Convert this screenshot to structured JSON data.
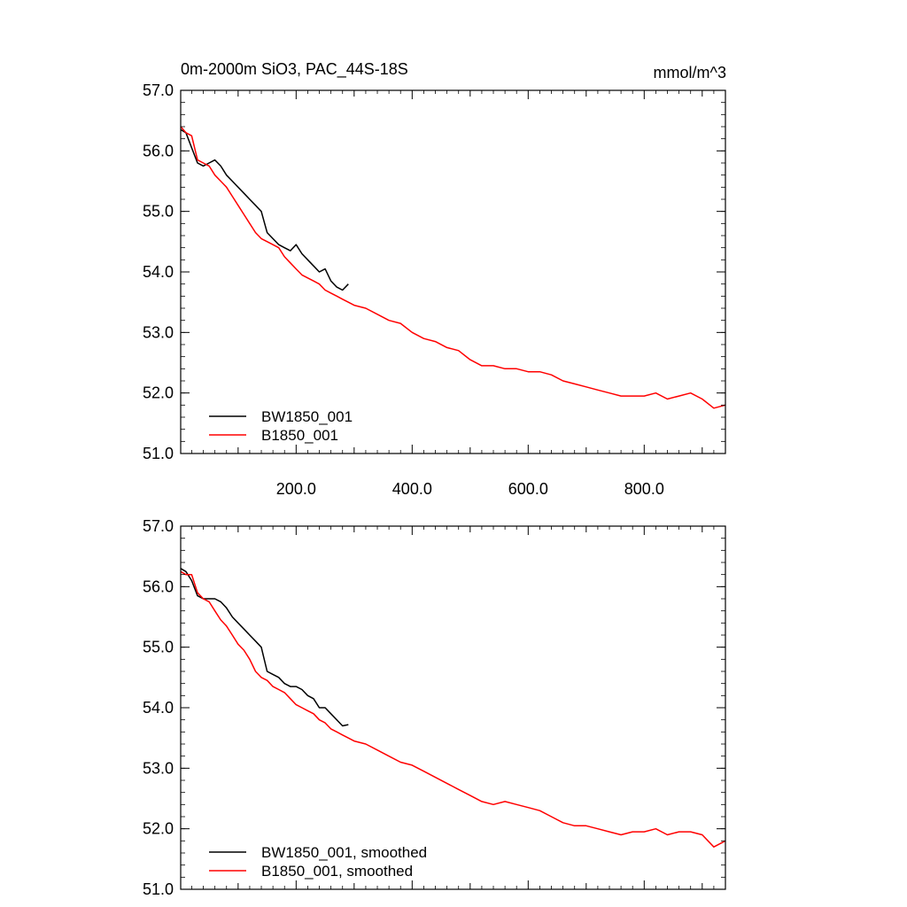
{
  "chart_data": [
    {
      "type": "line",
      "title": "0m-2000m SiO3, PAC_44S-18S",
      "units": "mmol/m^3",
      "xlim": [
        1,
        940
      ],
      "ylim": [
        51.0,
        57.0
      ],
      "x_ticks": [
        200,
        400,
        600,
        800
      ],
      "x_tick_labels": [
        "200.0",
        "400.0",
        "600.0",
        "800.0"
      ],
      "y_ticks": [
        51,
        52,
        53,
        54,
        55,
        56,
        57
      ],
      "y_tick_labels": [
        "51.0",
        "52.0",
        "53.0",
        "54.0",
        "55.0",
        "56.0",
        "57.0"
      ],
      "grid": false,
      "legend_position": "bottom-left",
      "series": [
        {
          "name": "BW1850_001",
          "color": "#000000",
          "x": [
            1,
            10,
            20,
            30,
            40,
            50,
            60,
            70,
            80,
            90,
            100,
            110,
            120,
            130,
            140,
            150,
            160,
            170,
            180,
            190,
            200,
            210,
            220,
            230,
            240,
            250,
            260,
            270,
            280,
            290
          ],
          "y": [
            56.35,
            56.3,
            56.05,
            55.8,
            55.75,
            55.8,
            55.85,
            55.75,
            55.6,
            55.5,
            55.4,
            55.3,
            55.2,
            55.1,
            55.0,
            54.65,
            54.55,
            54.45,
            54.4,
            54.35,
            54.45,
            54.3,
            54.2,
            54.1,
            54.0,
            54.05,
            53.85,
            53.75,
            53.7,
            53.8
          ]
        },
        {
          "name": "B1850_001",
          "color": "#ff0000",
          "x": [
            1,
            10,
            20,
            30,
            40,
            50,
            60,
            70,
            80,
            90,
            100,
            110,
            120,
            130,
            140,
            150,
            160,
            170,
            180,
            190,
            200,
            210,
            220,
            230,
            240,
            250,
            260,
            270,
            280,
            290,
            300,
            320,
            340,
            360,
            380,
            400,
            420,
            440,
            460,
            480,
            500,
            520,
            540,
            560,
            580,
            600,
            620,
            640,
            660,
            680,
            700,
            720,
            740,
            760,
            780,
            800,
            820,
            840,
            860,
            880,
            900,
            920,
            940
          ],
          "y": [
            56.4,
            56.3,
            56.25,
            55.85,
            55.8,
            55.75,
            55.6,
            55.5,
            55.4,
            55.25,
            55.1,
            54.95,
            54.8,
            54.65,
            54.55,
            54.5,
            54.45,
            54.4,
            54.25,
            54.15,
            54.05,
            53.95,
            53.9,
            53.85,
            53.8,
            53.7,
            53.65,
            53.6,
            53.55,
            53.5,
            53.45,
            53.4,
            53.3,
            53.2,
            53.15,
            53.0,
            52.9,
            52.85,
            52.75,
            52.7,
            52.55,
            52.45,
            52.45,
            52.4,
            52.4,
            52.35,
            52.35,
            52.3,
            52.2,
            52.15,
            52.1,
            52.05,
            52.0,
            51.95,
            51.95,
            51.95,
            52.0,
            51.9,
            51.95,
            52.0,
            51.9,
            51.75,
            51.8
          ]
        }
      ]
    },
    {
      "type": "line",
      "xlim": [
        1,
        940
      ],
      "ylim": [
        51.0,
        57.0
      ],
      "y_ticks": [
        51,
        52,
        53,
        54,
        55,
        56,
        57
      ],
      "y_tick_labels": [
        "51.0",
        "52.0",
        "53.0",
        "54.0",
        "55.0",
        "56.0",
        "57.0"
      ],
      "grid": false,
      "legend_position": "bottom-left",
      "series": [
        {
          "name": "BW1850_001, smoothed",
          "color": "#000000",
          "x": [
            1,
            10,
            20,
            30,
            40,
            50,
            60,
            70,
            80,
            90,
            100,
            110,
            120,
            130,
            140,
            150,
            160,
            170,
            180,
            190,
            200,
            210,
            220,
            230,
            240,
            250,
            260,
            270,
            280,
            290
          ],
          "y": [
            56.3,
            56.25,
            56.1,
            55.85,
            55.8,
            55.8,
            55.8,
            55.75,
            55.65,
            55.5,
            55.4,
            55.3,
            55.2,
            55.1,
            55.0,
            54.6,
            54.55,
            54.5,
            54.4,
            54.35,
            54.35,
            54.3,
            54.2,
            54.15,
            54.0,
            54.0,
            53.9,
            53.8,
            53.7,
            53.72
          ]
        },
        {
          "name": "B1850_001, smoothed",
          "color": "#ff0000",
          "x": [
            1,
            10,
            20,
            30,
            40,
            50,
            60,
            70,
            80,
            90,
            100,
            110,
            120,
            130,
            140,
            150,
            160,
            170,
            180,
            190,
            200,
            210,
            220,
            230,
            240,
            250,
            260,
            270,
            280,
            290,
            300,
            320,
            340,
            360,
            380,
            400,
            420,
            440,
            460,
            480,
            500,
            520,
            540,
            560,
            580,
            600,
            620,
            640,
            660,
            680,
            700,
            720,
            740,
            760,
            780,
            800,
            820,
            840,
            860,
            880,
            900,
            920,
            940
          ],
          "y": [
            56.25,
            56.2,
            56.2,
            55.9,
            55.8,
            55.75,
            55.6,
            55.45,
            55.35,
            55.2,
            55.05,
            54.95,
            54.8,
            54.6,
            54.5,
            54.45,
            54.35,
            54.3,
            54.25,
            54.15,
            54.05,
            54.0,
            53.95,
            53.9,
            53.8,
            53.75,
            53.65,
            53.6,
            53.55,
            53.5,
            53.45,
            53.4,
            53.3,
            53.2,
            53.1,
            53.05,
            52.95,
            52.85,
            52.75,
            52.65,
            52.55,
            52.45,
            52.4,
            52.45,
            52.4,
            52.35,
            52.3,
            52.2,
            52.1,
            52.05,
            52.05,
            52.0,
            51.95,
            51.9,
            51.95,
            51.95,
            52.0,
            51.9,
            51.95,
            51.95,
            51.9,
            51.7,
            51.8
          ]
        }
      ]
    }
  ]
}
